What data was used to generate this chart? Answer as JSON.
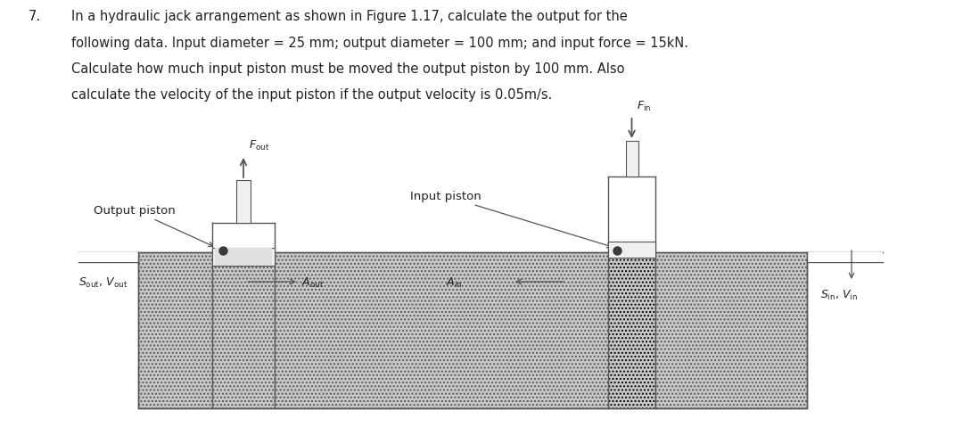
{
  "background_color": "#ffffff",
  "question_number": "7.",
  "question_text_line1": "In a hydraulic jack arrangement as shown in Figure 1.17, calculate the output for the",
  "question_text_line2": "following data. Input diameter = 25 mm; output diameter = 100 mm; and input force = 15kN.",
  "question_text_line3": "Calculate how much input piston must be moved the output piston by 100 mm. Also",
  "question_text_line4": "calculate the velocity of the input piston if the output velocity is 0.05m/s.",
  "lc": "#555555",
  "lw": 1.0,
  "hatch": "....",
  "fluid_color": "#c8c8c8",
  "piston_color": "#f0f0f0",
  "white": "#ffffff"
}
